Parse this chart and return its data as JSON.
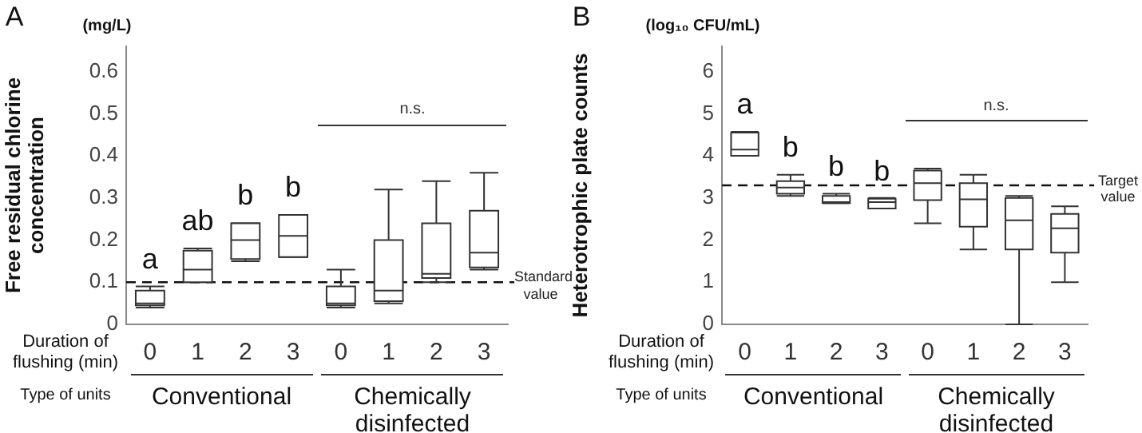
{
  "chart_data": [
    {
      "type": "box",
      "title": "A",
      "xlabel": "Duration of flushing (min)",
      "ylabel": "Free residual chlorine concentration",
      "categories": [
        "0",
        "1",
        "2",
        "3",
        "0",
        "1",
        "2",
        "3"
      ],
      "color": "#333333",
      "boxes": [
        {
          "low": 0.04,
          "q1": 0.045,
          "median": 0.05,
          "q3": 0.08,
          "high": 0.09
        },
        {
          "low": 0.1,
          "q1": 0.1,
          "median": 0.13,
          "q3": 0.175,
          "high": 0.18
        },
        {
          "low": 0.15,
          "q1": 0.155,
          "median": 0.2,
          "q3": 0.24,
          "high": 0.24
        },
        {
          "low": 0.16,
          "q1": 0.16,
          "median": 0.21,
          "q3": 0.26,
          "high": 0.26
        },
        {
          "low": 0.04,
          "q1": 0.045,
          "median": 0.05,
          "q3": 0.09,
          "high": 0.13
        },
        {
          "low": 0.05,
          "q1": 0.055,
          "median": 0.08,
          "q3": 0.2,
          "high": 0.32
        },
        {
          "low": 0.1,
          "q1": 0.11,
          "median": 0.12,
          "q3": 0.24,
          "high": 0.34
        },
        {
          "low": 0.13,
          "q1": 0.135,
          "median": 0.17,
          "q3": 0.27,
          "high": 0.36
        }
      ],
      "ylim": [
        0,
        0.66
      ],
      "yticks": [
        0,
        0.1,
        0.2,
        0.3,
        0.4,
        0.5,
        0.6
      ],
      "ref_lines": [
        {
          "axis": "y",
          "value": 0.1,
          "label": "Standard value",
          "line_style": "dashed"
        }
      ],
      "annotations": [
        "a",
        "ab",
        "b",
        "b",
        "n.s.",
        "(mg/L)",
        "Type of units",
        "Conventional",
        "Chemically disinfected"
      ]
    },
    {
      "type": "box",
      "title": "B",
      "xlabel": "Duration of flushing (min)",
      "ylabel": "Heterotrophic plate counts",
      "categories": [
        "0",
        "1",
        "2",
        "3",
        "0",
        "1",
        "2",
        "3"
      ],
      "color": "#333333",
      "boxes": [
        {
          "low": 4.0,
          "q1": 4.0,
          "median": 4.15,
          "q3": 4.55,
          "high": 4.57
        },
        {
          "low": 3.05,
          "q1": 3.1,
          "median": 3.25,
          "q3": 3.4,
          "high": 3.55
        },
        {
          "low": 2.88,
          "q1": 2.88,
          "median": 2.9,
          "q3": 3.05,
          "high": 3.1
        },
        {
          "low": 2.75,
          "q1": 2.75,
          "median": 2.9,
          "q3": 2.98,
          "high": 3.0
        },
        {
          "low": 2.4,
          "q1": 2.95,
          "median": 3.35,
          "q3": 3.65,
          "high": 3.7
        },
        {
          "low": 1.78,
          "q1": 2.32,
          "median": 2.97,
          "q3": 3.35,
          "high": 3.55
        },
        {
          "low": 0.0,
          "q1": 1.78,
          "median": 2.47,
          "q3": 3.0,
          "high": 3.05
        },
        {
          "low": 1.0,
          "q1": 1.7,
          "median": 2.28,
          "q3": 2.62,
          "high": 2.8
        }
      ],
      "ylim": [
        0,
        6.6
      ],
      "yticks": [
        0,
        1,
        2,
        3,
        4,
        5,
        6
      ],
      "ref_lines": [
        {
          "axis": "y",
          "value": 3.3,
          "label": "Target value",
          "line_style": "dashed"
        }
      ],
      "annotations": [
        "a",
        "b",
        "b",
        "b",
        "n.s.",
        "(log₁₀ CFU/mL)",
        "Type of units",
        "Conventional",
        "Chemically disinfected"
      ]
    }
  ]
}
